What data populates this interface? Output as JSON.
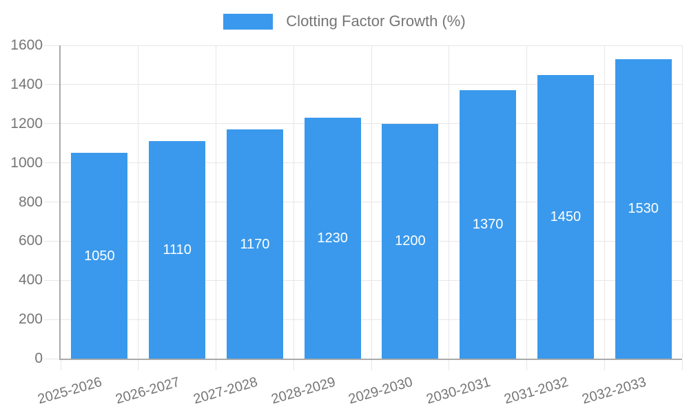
{
  "chart_data": {
    "type": "bar",
    "title": "",
    "legend_label": "Clotting Factor Growth (%)",
    "legend_position": "top-center",
    "categories": [
      "2025-2026",
      "2026-2027",
      "2027-2028",
      "2028-2029",
      "2029-2030",
      "2030-2031",
      "2031-2032",
      "2032-2033"
    ],
    "values": [
      1050,
      1110,
      1170,
      1230,
      1200,
      1370,
      1450,
      1530
    ],
    "bar_value_labels": [
      "1050",
      "1110",
      "1170",
      "1230",
      "1200",
      "1370",
      "1450",
      "1530"
    ],
    "xlabel": "",
    "ylabel": "",
    "ylim": [
      0,
      1600
    ],
    "ytick_step": 200,
    "ytick_labels": [
      "0",
      "200",
      "400",
      "600",
      "800",
      "1000",
      "1200",
      "1400",
      "1600"
    ],
    "grid": true,
    "x_label_rotation_deg": -16,
    "colors": {
      "bar": "#3a99ec",
      "bar_value_text": "#ffffff",
      "axis_text": "#757575",
      "legend_text": "#757575",
      "gridline": "#e6e6e6",
      "axis_line": "#a9a9a9",
      "background": "#ffffff"
    }
  }
}
